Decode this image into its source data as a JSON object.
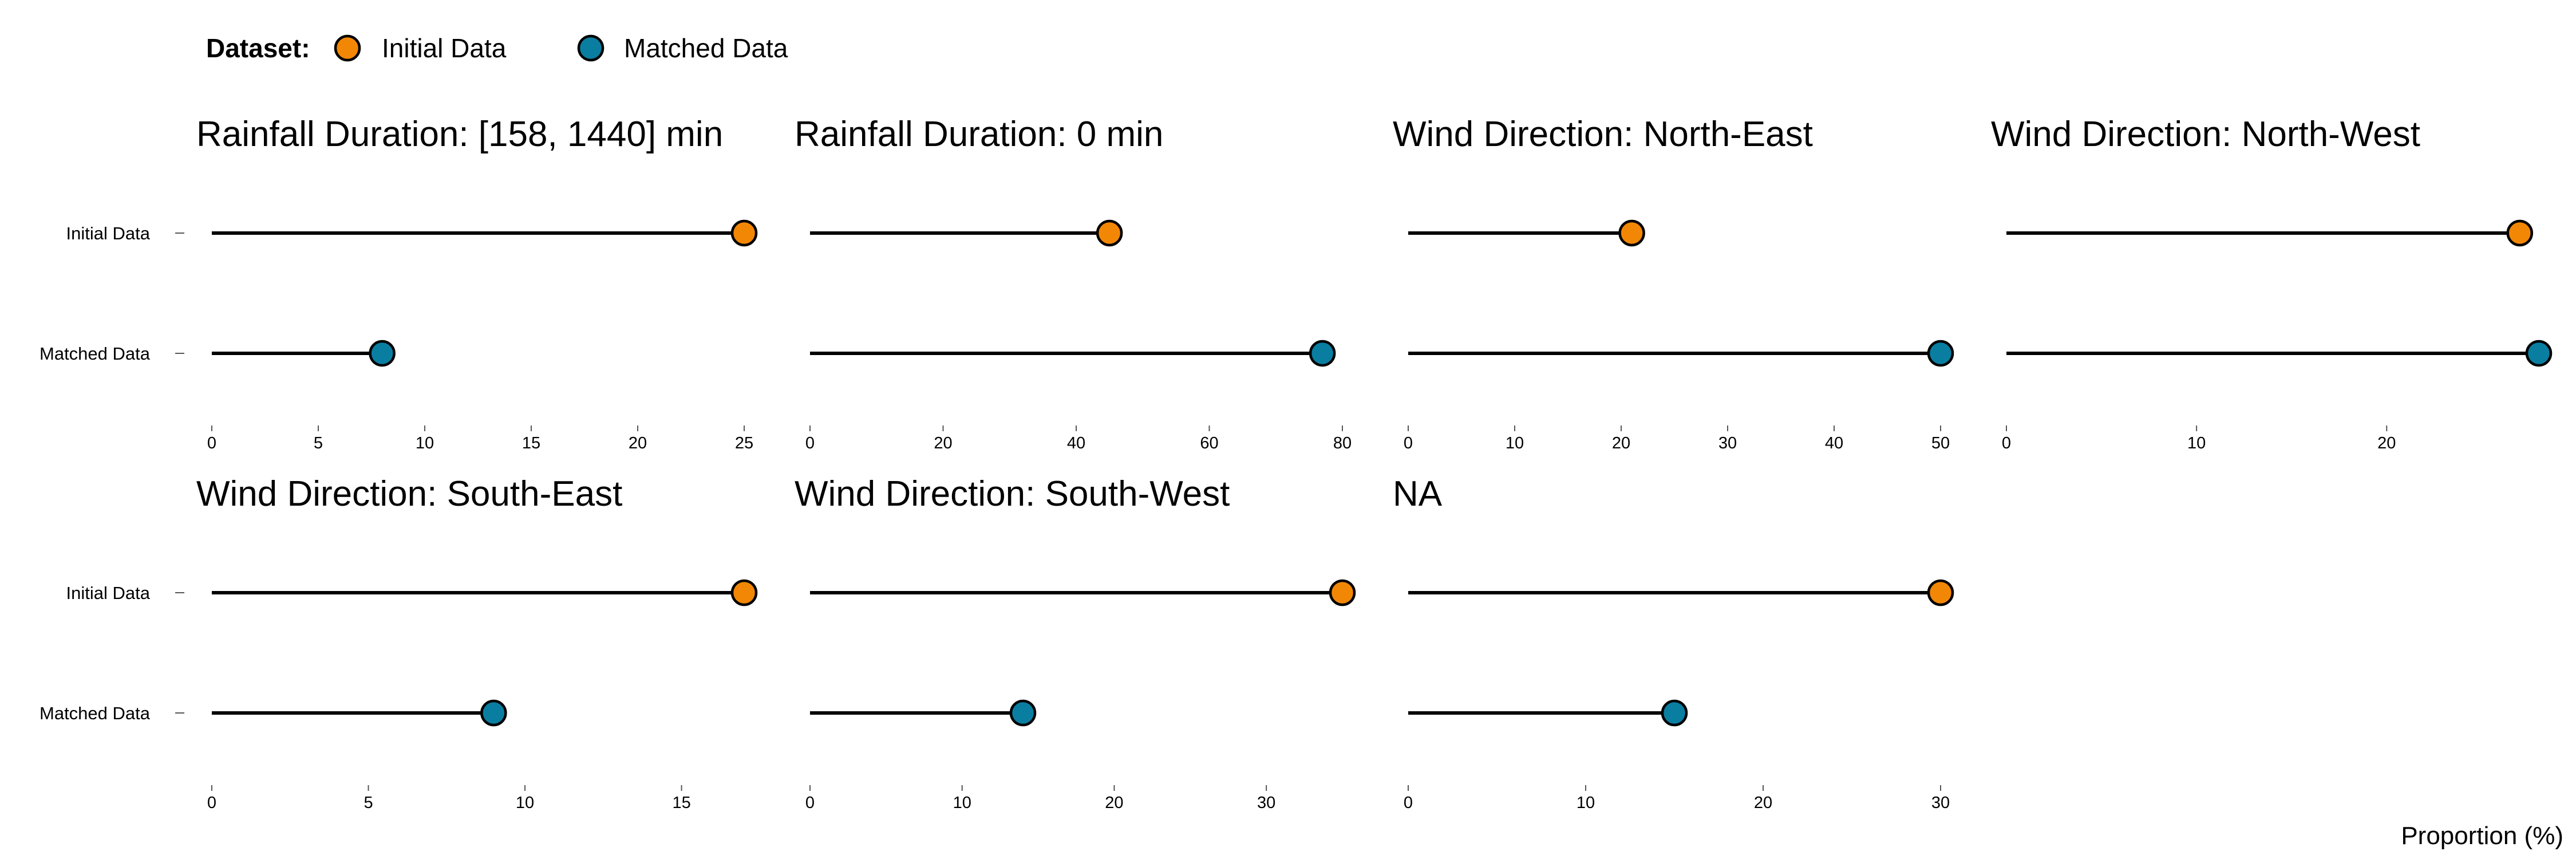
{
  "legend": {
    "title": "Dataset:",
    "items": [
      {
        "label": "Initial Data",
        "color": "#F28705"
      },
      {
        "label": "Matched Data",
        "color": "#0A7EA1"
      }
    ]
  },
  "x_axis_title": "Proportion (%)",
  "chart_data": [
    {
      "type": "lollipop",
      "title": "Rainfall Duration: [158, 1440] min",
      "categories": [
        "Initial Data",
        "Matched Data"
      ],
      "values": [
        25.0,
        8.0
      ],
      "xlim": [
        0,
        25
      ],
      "xticks": [
        0,
        5,
        10,
        15,
        20,
        25
      ],
      "grid": false
    },
    {
      "type": "lollipop",
      "title": "Rainfall Duration: 0 min",
      "categories": [
        "Initial Data",
        "Matched Data"
      ],
      "values": [
        45.0,
        77.0
      ],
      "xlim": [
        0,
        80
      ],
      "xticks": [
        0,
        20,
        40,
        60,
        80
      ],
      "grid": false
    },
    {
      "type": "lollipop",
      "title": "Wind Direction: North-East",
      "categories": [
        "Initial Data",
        "Matched Data"
      ],
      "values": [
        21.0,
        50.0
      ],
      "xlim": [
        0,
        50
      ],
      "xticks": [
        0,
        10,
        20,
        30,
        40,
        50
      ],
      "grid": false
    },
    {
      "type": "lollipop",
      "title": "Wind Direction: North-West",
      "categories": [
        "Initial Data",
        "Matched Data"
      ],
      "values": [
        27.0,
        28.0
      ],
      "xlim": [
        0,
        28
      ],
      "xticks": [
        0,
        10,
        20
      ],
      "grid": false
    },
    {
      "type": "lollipop",
      "title": "Wind Direction: South-East",
      "categories": [
        "Initial Data",
        "Matched Data"
      ],
      "values": [
        17.0,
        9.0
      ],
      "xlim": [
        0,
        17
      ],
      "xticks": [
        0,
        5,
        10,
        15
      ],
      "grid": false
    },
    {
      "type": "lollipop",
      "title": "Wind Direction: South-West",
      "categories": [
        "Initial Data",
        "Matched Data"
      ],
      "values": [
        35.0,
        14.0
      ],
      "xlim": [
        0,
        35
      ],
      "xticks": [
        0,
        10,
        20,
        30
      ],
      "grid": false
    },
    {
      "type": "lollipop",
      "title": "NA",
      "categories": [
        "Initial Data",
        "Matched Data"
      ],
      "values": [
        30.0,
        15.0
      ],
      "xlim": [
        0,
        30
      ],
      "xticks": [
        0,
        10,
        20,
        30
      ],
      "grid": false
    }
  ]
}
